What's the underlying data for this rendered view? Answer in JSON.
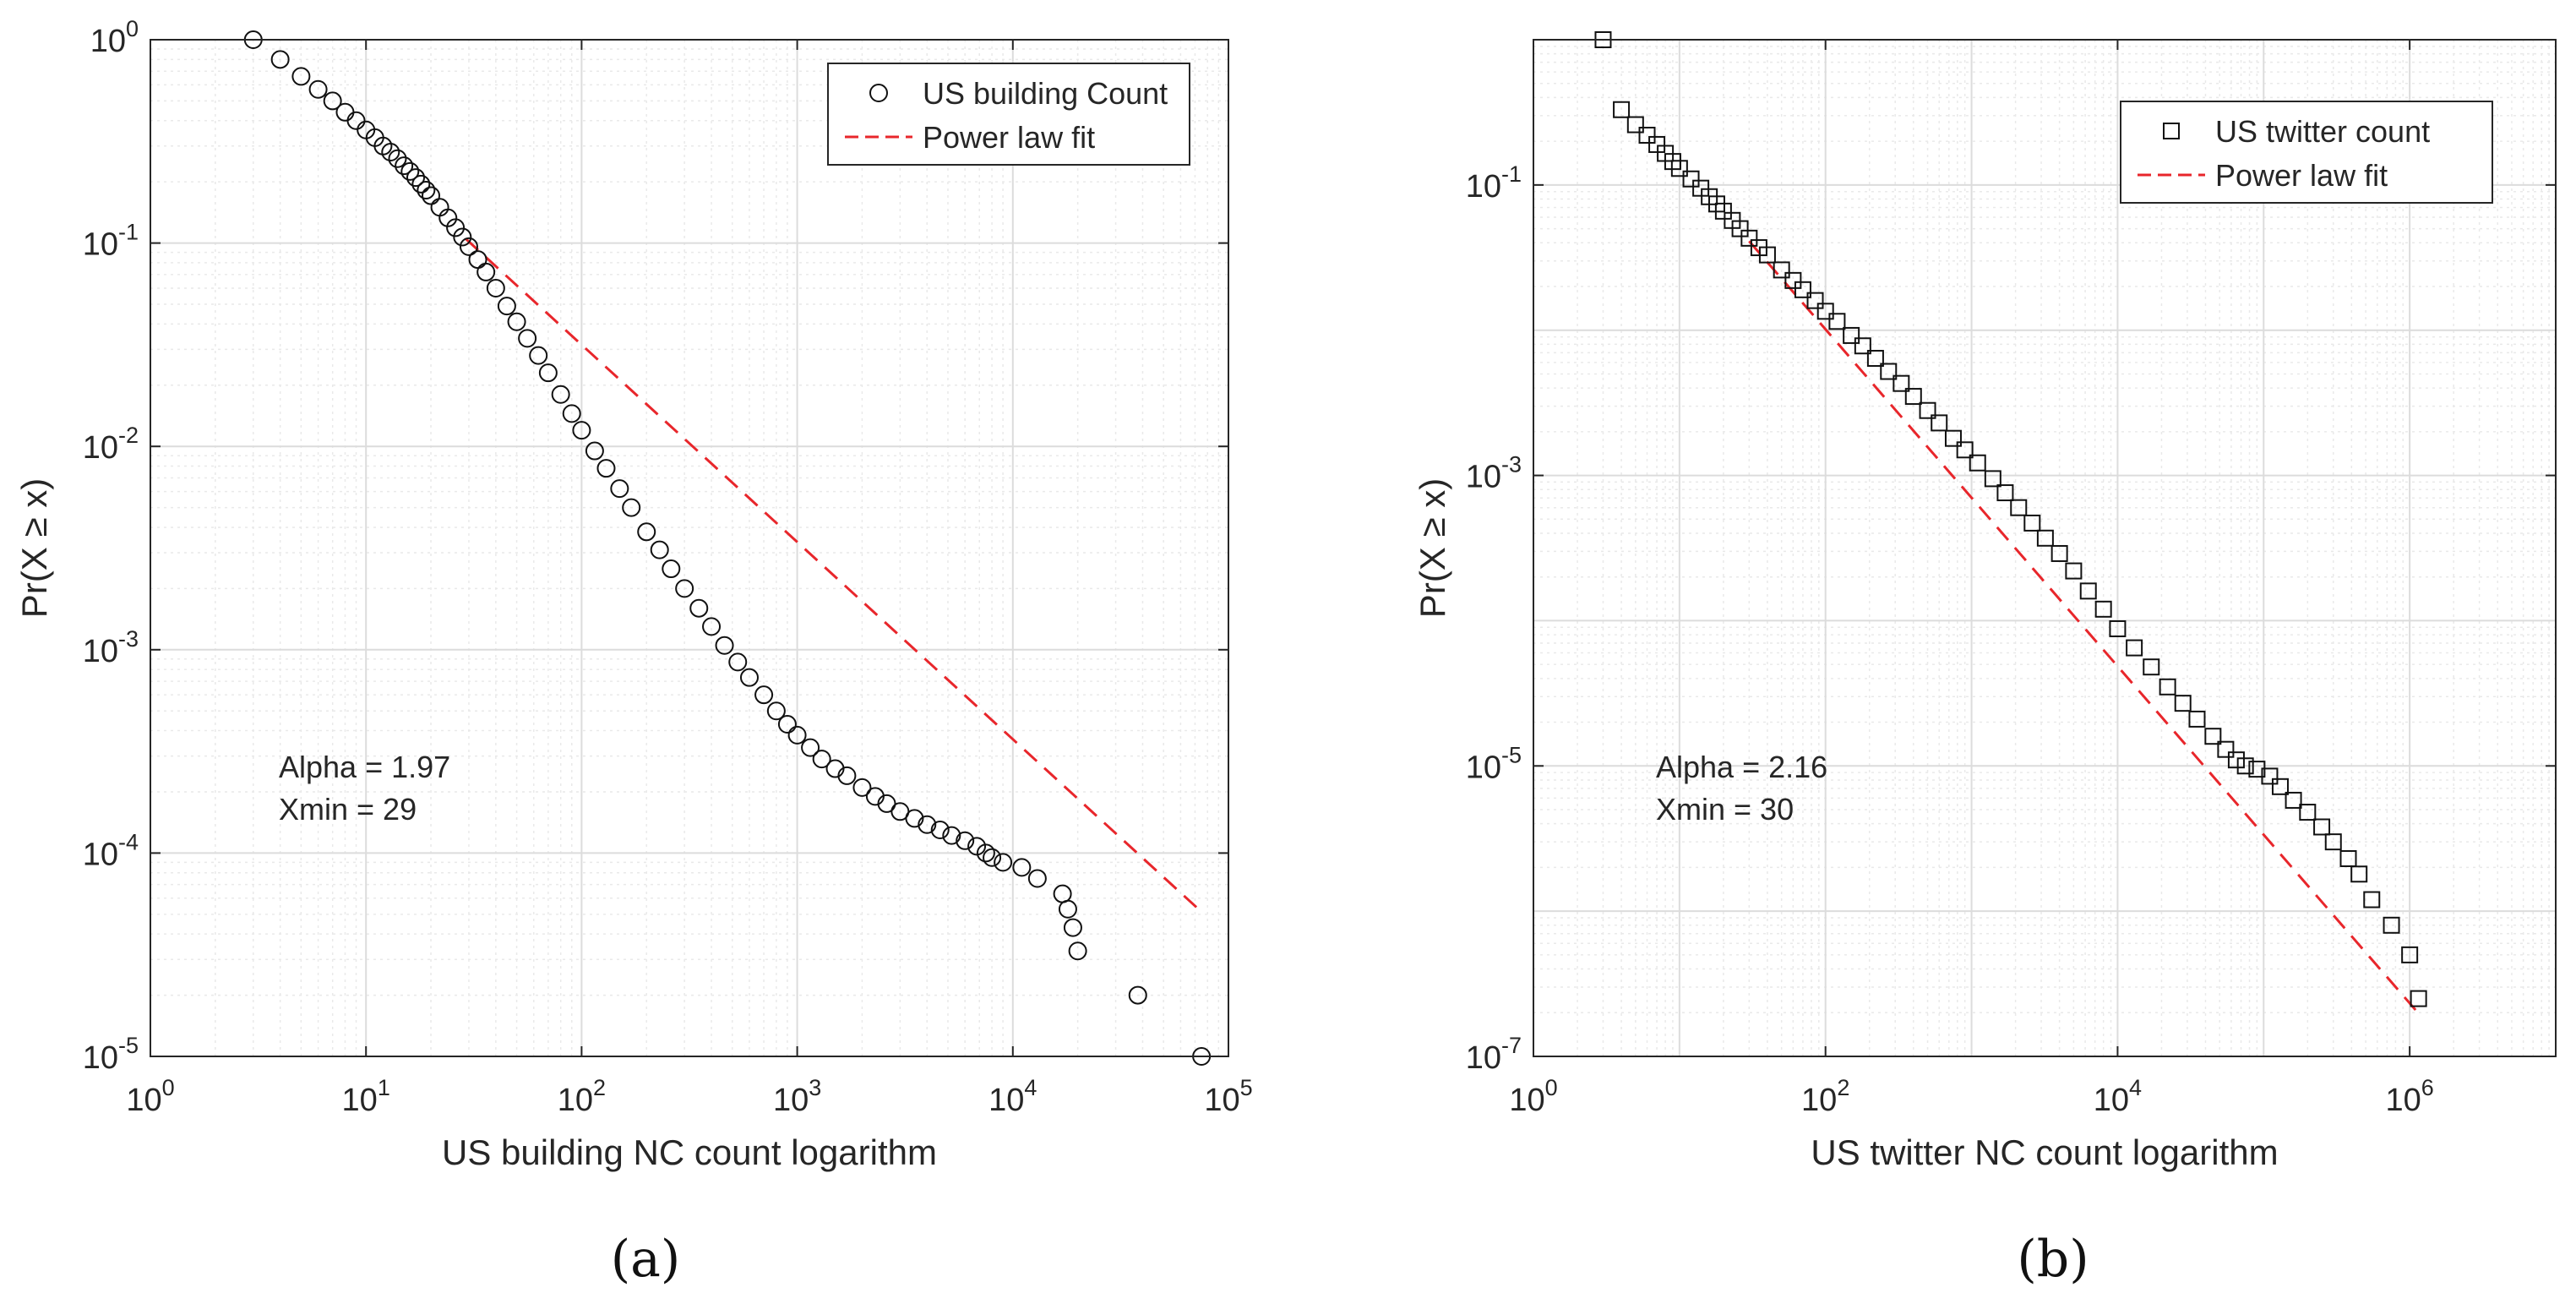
{
  "figure": {
    "captions": [
      "(a)",
      "(b)"
    ]
  },
  "chart_data": [
    {
      "type": "scatter",
      "panel": "a",
      "xlabel": "US building NC count logarithm",
      "ylabel": "Pr(X ≥ x)",
      "xscale": "log",
      "yscale": "log",
      "xlim": [
        1,
        100000
      ],
      "ylim": [
        1e-05,
        1
      ],
      "xticks": [
        1,
        10,
        100,
        1000,
        10000,
        100000
      ],
      "xtick_labels": [
        [
          "10",
          "0"
        ],
        [
          "10",
          "1"
        ],
        [
          "10",
          "2"
        ],
        [
          "10",
          "3"
        ],
        [
          "10",
          "4"
        ],
        [
          "10",
          "5"
        ]
      ],
      "yticks": [
        1e-05,
        0.0001,
        0.001,
        0.01,
        0.1,
        1
      ],
      "ytick_labels": [
        [
          "10",
          "-5"
        ],
        [
          "10",
          "-4"
        ],
        [
          "10",
          "-3"
        ],
        [
          "10",
          "-2"
        ],
        [
          "10",
          "-1"
        ],
        [
          "10",
          "0"
        ]
      ],
      "grid": true,
      "legend": {
        "position": "top-right",
        "entries": [
          {
            "label": "US building Count",
            "marker": "circle",
            "color": "#000000"
          },
          {
            "label": "Power law fit",
            "style": "dashed",
            "color": "#e8262b"
          }
        ]
      },
      "annotation": [
        "Alpha = 1.97",
        "Xmin = 29"
      ],
      "series": [
        {
          "name": "US building Count",
          "marker": "circle",
          "points": [
            [
              3,
              1.0
            ],
            [
              4,
              0.8
            ],
            [
              5,
              0.66
            ],
            [
              6,
              0.57
            ],
            [
              7,
              0.5
            ],
            [
              8,
              0.44
            ],
            [
              9,
              0.4
            ],
            [
              10,
              0.36
            ],
            [
              11,
              0.33
            ],
            [
              12,
              0.3
            ],
            [
              13,
              0.28
            ],
            [
              14,
              0.26
            ],
            [
              15,
              0.24
            ],
            [
              16,
              0.225
            ],
            [
              17,
              0.21
            ],
            [
              18,
              0.195
            ],
            [
              19,
              0.182
            ],
            [
              20,
              0.171
            ],
            [
              22,
              0.15
            ],
            [
              24,
              0.133
            ],
            [
              26,
              0.119
            ],
            [
              28,
              0.107
            ],
            [
              30,
              0.096
            ],
            [
              33,
              0.083
            ],
            [
              36,
              0.072
            ],
            [
              40,
              0.06
            ],
            [
              45,
              0.049
            ],
            [
              50,
              0.041
            ],
            [
              56,
              0.034
            ],
            [
              63,
              0.028
            ],
            [
              70,
              0.023
            ],
            [
              80,
              0.018
            ],
            [
              90,
              0.0145
            ],
            [
              100,
              0.012
            ],
            [
              115,
              0.0095
            ],
            [
              130,
              0.0078
            ],
            [
              150,
              0.0062
            ],
            [
              170,
              0.005
            ],
            [
              200,
              0.0038
            ],
            [
              230,
              0.0031
            ],
            [
              260,
              0.0025
            ],
            [
              300,
              0.002
            ],
            [
              350,
              0.0016
            ],
            [
              400,
              0.0013
            ],
            [
              460,
              0.00105
            ],
            [
              530,
              0.00087
            ],
            [
              600,
              0.00073
            ],
            [
              700,
              0.0006
            ],
            [
              800,
              0.0005
            ],
            [
              900,
              0.00043
            ],
            [
              1000,
              0.00038
            ],
            [
              1150,
              0.00033
            ],
            [
              1300,
              0.00029
            ],
            [
              1500,
              0.00026
            ],
            [
              1700,
              0.00024
            ],
            [
              2000,
              0.00021
            ],
            [
              2300,
              0.00019
            ],
            [
              2600,
              0.000175
            ],
            [
              3000,
              0.00016
            ],
            [
              3500,
              0.000148
            ],
            [
              4000,
              0.000138
            ],
            [
              4600,
              0.00013
            ],
            [
              5200,
              0.000122
            ],
            [
              6000,
              0.000115
            ],
            [
              6800,
              0.000108
            ],
            [
              7500,
              0.0001
            ],
            [
              8000,
              9.5e-05
            ],
            [
              9000,
              9e-05
            ],
            [
              11000,
              8.5e-05
            ],
            [
              13000,
              7.5e-05
            ],
            [
              17000,
              6.3e-05
            ],
            [
              18000,
              5.3e-05
            ],
            [
              19000,
              4.3e-05
            ],
            [
              20000,
              3.3e-05
            ],
            [
              38000,
              2e-05
            ],
            [
              75000,
              1e-05
            ]
          ]
        }
      ],
      "fit": {
        "name": "Power law fit",
        "alpha": 1.97,
        "xmin": 29,
        "x_range": [
          29,
          75000
        ],
        "y_at_xmin": 0.105
      }
    },
    {
      "type": "scatter",
      "panel": "b",
      "xlabel": "US twitter NC count logarithm",
      "ylabel": "Pr(X ≥ x)",
      "xscale": "log",
      "yscale": "log",
      "xlim": [
        1,
        10000000
      ],
      "ylim": [
        1e-07,
        1
      ],
      "xticks": [
        1,
        100,
        10000,
        1000000
      ],
      "xtick_labels": [
        [
          "10",
          "0"
        ],
        [
          "10",
          "2"
        ],
        [
          "10",
          "4"
        ],
        [
          "10",
          "6"
        ]
      ],
      "yticks": [
        1e-07,
        1e-05,
        0.001,
        0.1
      ],
      "ytick_labels": [
        [
          "10",
          "-7"
        ],
        [
          "10",
          "-5"
        ],
        [
          "10",
          "-3"
        ],
        [
          "10",
          "-1"
        ]
      ],
      "grid": true,
      "legend": {
        "position": "top-right",
        "entries": [
          {
            "label": "US twitter count",
            "marker": "square",
            "color": "#000000"
          },
          {
            "label": "Power law fit",
            "style": "dashed",
            "color": "#e8262b"
          }
        ]
      },
      "annotation": [
        "Alpha = 2.16",
        "Xmin = 30"
      ],
      "series": [
        {
          "name": "US twitter count",
          "marker": "square",
          "points": [
            [
              3,
              1.0
            ],
            [
              4,
              0.33
            ],
            [
              5,
              0.26
            ],
            [
              6,
              0.22
            ],
            [
              7,
              0.19
            ],
            [
              8,
              0.165
            ],
            [
              9,
              0.145
            ],
            [
              10,
              0.13
            ],
            [
              12,
              0.11
            ],
            [
              14,
              0.095
            ],
            [
              16,
              0.083
            ],
            [
              18,
              0.074
            ],
            [
              20,
              0.066
            ],
            [
              23,
              0.057
            ],
            [
              26,
              0.05
            ],
            [
              30,
              0.043
            ],
            [
              35,
              0.037
            ],
            [
              40,
              0.033
            ],
            [
              50,
              0.026
            ],
            [
              60,
              0.022
            ],
            [
              70,
              0.019
            ],
            [
              85,
              0.016
            ],
            [
              100,
              0.0135
            ],
            [
              120,
              0.0115
            ],
            [
              150,
              0.0092
            ],
            [
              180,
              0.0078
            ],
            [
              220,
              0.0064
            ],
            [
              270,
              0.0052
            ],
            [
              330,
              0.0043
            ],
            [
              400,
              0.0035
            ],
            [
              500,
              0.0028
            ],
            [
              600,
              0.0023
            ],
            [
              750,
              0.0018
            ],
            [
              900,
              0.0015
            ],
            [
              1100,
              0.00122
            ],
            [
              1400,
              0.00095
            ],
            [
              1700,
              0.00076
            ],
            [
              2100,
              0.0006
            ],
            [
              2600,
              0.00047
            ],
            [
              3200,
              0.00037
            ],
            [
              4000,
              0.00029
            ],
            [
              5000,
              0.00022
            ],
            [
              6300,
              0.00016
            ],
            [
              8000,
              0.00012
            ],
            [
              10000,
              8.8e-05
            ],
            [
              13000,
              6.5e-05
            ],
            [
              17000,
              4.8e-05
            ],
            [
              22000,
              3.5e-05
            ],
            [
              28000,
              2.7e-05
            ],
            [
              35000,
              2.1e-05
            ],
            [
              45000,
              1.6e-05
            ],
            [
              55000,
              1.3e-05
            ],
            [
              65000,
              1.1e-05
            ],
            [
              75000,
              1e-05
            ],
            [
              90000,
              9.5e-06
            ],
            [
              110000,
              8.5e-06
            ],
            [
              130000,
              7.2e-06
            ],
            [
              160000,
              5.8e-06
            ],
            [
              200000,
              4.8e-06
            ],
            [
              250000,
              3.8e-06
            ],
            [
              300000,
              3e-06
            ],
            [
              380000,
              2.3e-06
            ],
            [
              450000,
              1.8e-06
            ],
            [
              550000,
              1.2e-06
            ],
            [
              750000,
              8e-07
            ],
            [
              1000000,
              5e-07
            ],
            [
              1150000,
              2.5e-07
            ]
          ]
        }
      ],
      "fit": {
        "name": "Power law fit",
        "alpha": 2.16,
        "xmin": 30,
        "x_range": [
          30,
          1150000
        ],
        "y_at_xmin": 0.041
      }
    }
  ]
}
